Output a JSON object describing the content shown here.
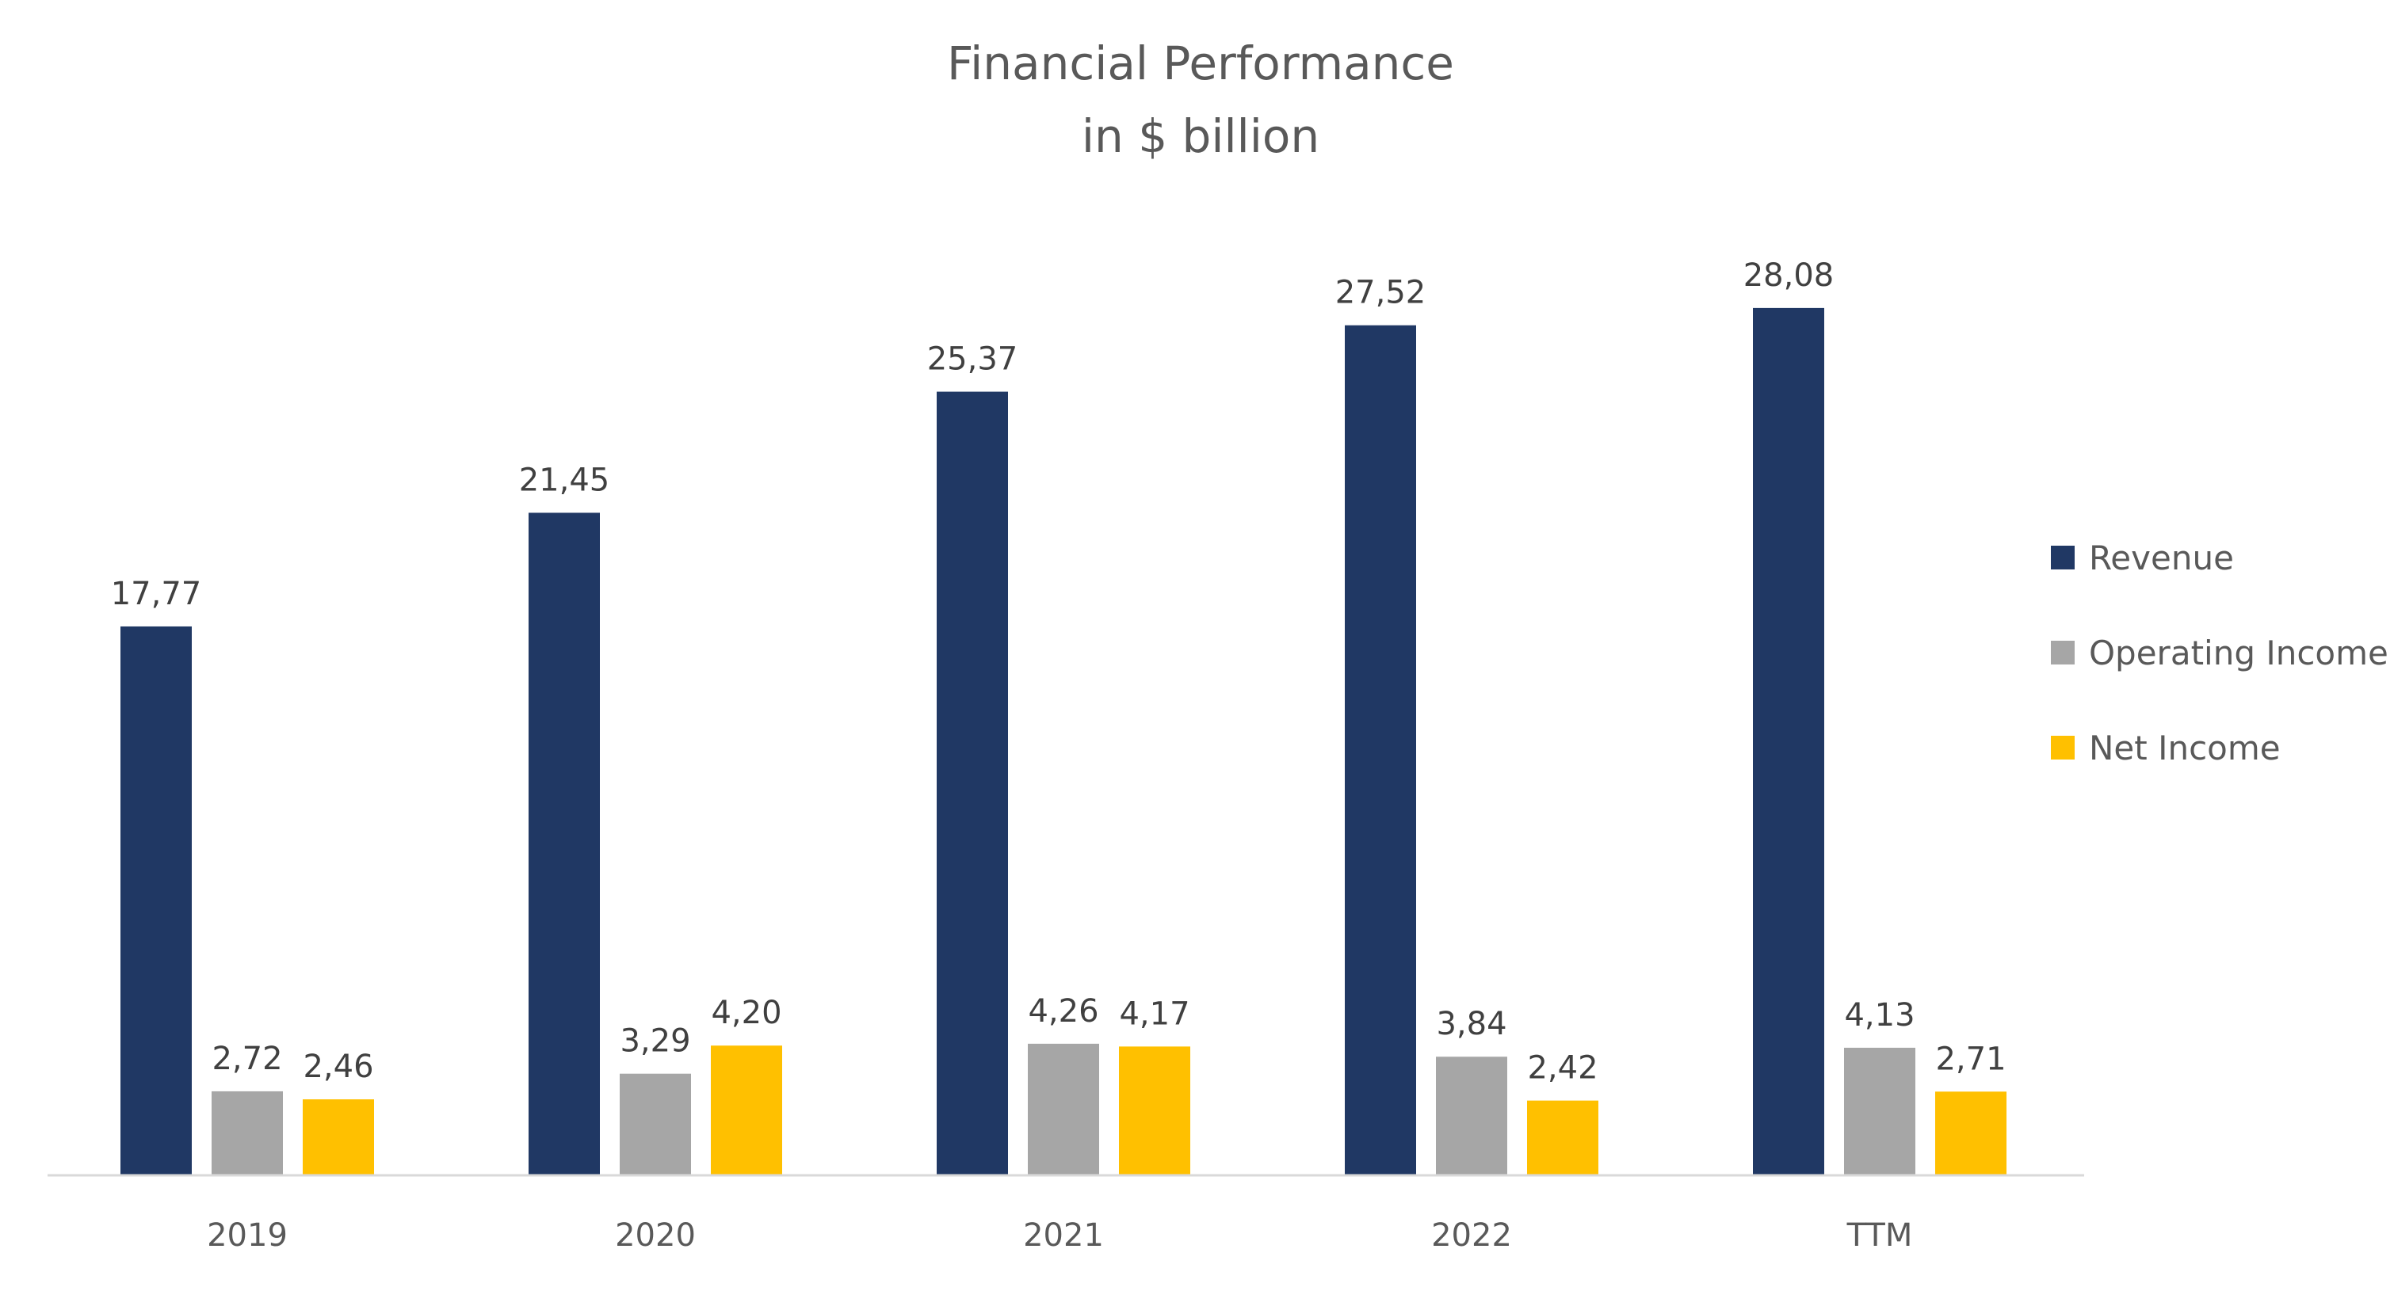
{
  "chart_data": {
    "type": "bar",
    "title": "Financial Performance",
    "subtitle": "in $ billion",
    "categories": [
      "2019",
      "2020",
      "2021",
      "2022",
      "TTM"
    ],
    "series": [
      {
        "name": "Revenue",
        "color": "#203864",
        "values": [
          17.77,
          21.45,
          25.37,
          27.52,
          28.08
        ],
        "labels": [
          "17,77",
          "21,45",
          "25,37",
          "27,52",
          "28,08"
        ]
      },
      {
        "name": "Operating Income",
        "color": "#A6A6A6",
        "values": [
          2.72,
          3.29,
          4.26,
          3.84,
          4.13
        ],
        "labels": [
          "2,72",
          "3,29",
          "4,26",
          "3,84",
          "4,13"
        ]
      },
      {
        "name": "Net Income",
        "color": "#FFC000",
        "values": [
          2.46,
          4.2,
          4.17,
          2.42,
          2.71
        ],
        "labels": [
          "2,46",
          "4,20",
          "4,17",
          "2,42",
          "2,71"
        ]
      }
    ],
    "ylim": [
      0,
      30
    ],
    "xlabel": "",
    "ylabel": "",
    "grid": false,
    "legend_position": "right"
  }
}
